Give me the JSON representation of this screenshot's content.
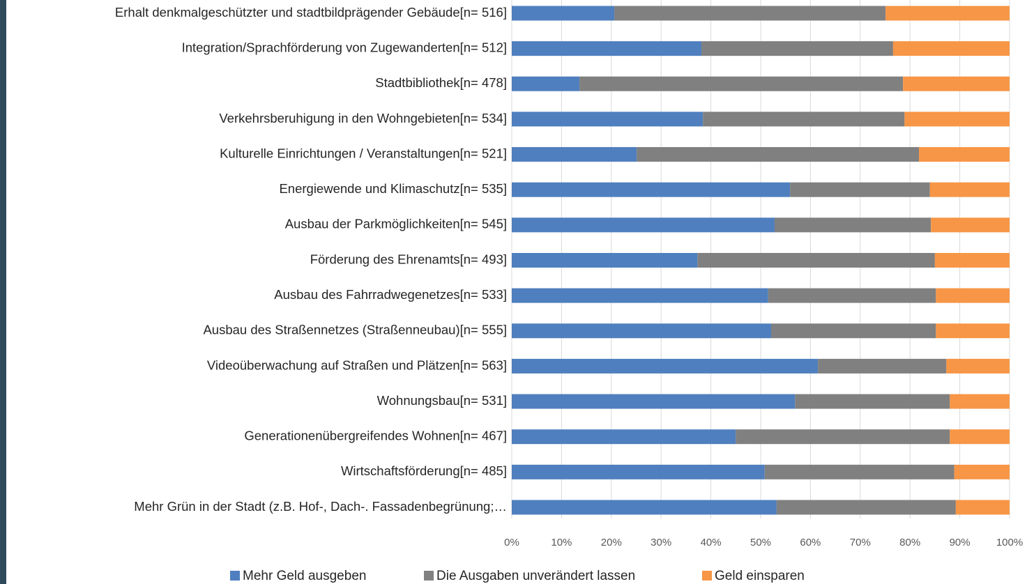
{
  "chart_data": {
    "type": "stacked_barh",
    "categories": [
      "Erhalt denkmalgeschützter und stadtbildprägender Gebäude[n= 516]",
      "Integration/Sprachförderung von Zugewanderten[n= 512]",
      "Stadtbibliothek[n= 478]",
      "Verkehrsberuhigung in den Wohngebieten[n= 534]",
      "Kulturelle Einrichtungen / Veranstaltungen[n= 521]",
      "Energiewende und Klimaschutz[n= 535]",
      "Ausbau der Parkmöglichkeiten[n= 545]",
      "Förderung des Ehrenamts[n= 493]",
      "Ausbau des Fahrradwegenetzes[n= 533]",
      "Ausbau des Straßennetzes (Straßenneubau)[n= 555]",
      "Videoüberwachung auf Straßen und Plätzen[n= 563]",
      "Wohnungsbau[n= 531]",
      "Generationenübergreifendes Wohnen[n= 467]",
      "Wirtschaftsförderung[n= 485]",
      "Mehr Grün in der Stadt (z.B. Hof-, Dach-. Fassadenbegrünung;…"
    ],
    "series": [
      {
        "name": "Mehr Geld ausgeben",
        "color": "#4f7fbe",
        "values": [
          20.6,
          38.1,
          13.6,
          38.4,
          25.1,
          55.9,
          52.8,
          37.3,
          51.5,
          52.1,
          61.5,
          56.9,
          45.0,
          50.8,
          53.2
        ]
      },
      {
        "name": "Die Ausgaben unverändert lassen",
        "color": "#808080",
        "values": [
          54.5,
          38.5,
          65.0,
          40.5,
          56.7,
          28.1,
          31.4,
          47.7,
          33.7,
          33.1,
          25.8,
          31.1,
          43.0,
          38.1,
          36.0
        ]
      },
      {
        "name": "Geld einsparen",
        "color": "#f79646",
        "values": [
          24.9,
          23.4,
          21.4,
          21.1,
          18.2,
          16.0,
          15.8,
          15.0,
          14.8,
          14.8,
          12.7,
          12.0,
          12.0,
          11.1,
          10.8
        ]
      }
    ],
    "xlim": [
      0,
      100
    ],
    "xticks": [
      {
        "value": 0,
        "label": "0%"
      },
      {
        "value": 10,
        "label": "10%"
      },
      {
        "value": 20,
        "label": "20%"
      },
      {
        "value": 30,
        "label": "30%"
      },
      {
        "value": 40,
        "label": "40%"
      },
      {
        "value": 50,
        "label": "50%"
      },
      {
        "value": 60,
        "label": "60%"
      },
      {
        "value": 70,
        "label": "70%"
      },
      {
        "value": 80,
        "label": "80%"
      },
      {
        "value": 90,
        "label": "90%"
      },
      {
        "value": 100,
        "label": "100%"
      }
    ],
    "grid": true,
    "legend": "bottom"
  }
}
